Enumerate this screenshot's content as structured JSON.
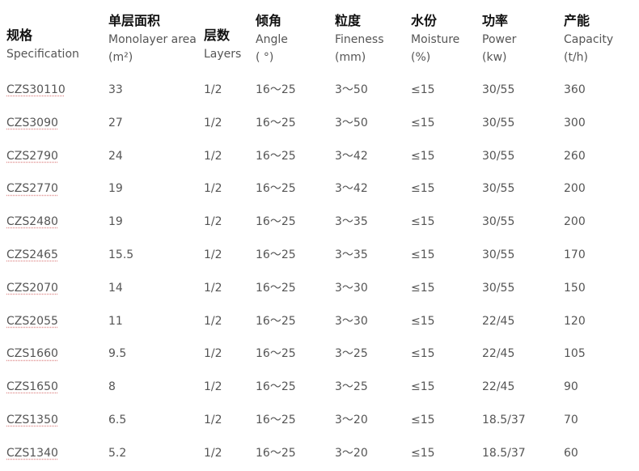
{
  "headers": [
    {
      "zh": "规格",
      "en": "Specification",
      "unit": ""
    },
    {
      "zh": "单层面积",
      "en": "Monolayer area",
      "unit": "(m²)"
    },
    {
      "zh": "层数",
      "en": "Layers",
      "unit": ""
    },
    {
      "zh": "倾角",
      "en": "Angle",
      "unit": "( °)"
    },
    {
      "zh": "粒度",
      "en": "Fineness",
      "unit": "(mm)"
    },
    {
      "zh": "水份",
      "en": "Moisture",
      "unit": "(%)"
    },
    {
      "zh": "功率",
      "en": "Power",
      "unit": "(kw)"
    },
    {
      "zh": "产能",
      "en": "Capacity",
      "unit": "(t/h)"
    }
  ],
  "rows": [
    [
      "CZS30110",
      "33",
      "1/2",
      "16～25",
      "3～50",
      "≤15",
      "30/55",
      "360"
    ],
    [
      "CZS3090",
      "27",
      "1/2",
      "16～25",
      "3～50",
      "≤15",
      "30/55",
      "300"
    ],
    [
      "CZS2790",
      "24",
      "1/2",
      "16～25",
      "3～42",
      "≤15",
      "30/55",
      "260"
    ],
    [
      "CZS2770",
      "19",
      "1/2",
      "16～25",
      "3～42",
      "≤15",
      "30/55",
      "200"
    ],
    [
      "CZS2480",
      "19",
      "1/2",
      "16～25",
      "3～35",
      "≤15",
      "30/55",
      "200"
    ],
    [
      "CZS2465",
      "15.5",
      "1/2",
      "16～25",
      "3～35",
      "≤15",
      "30/55",
      "170"
    ],
    [
      "CZS2070",
      "14",
      "1/2",
      "16～25",
      "3～30",
      "≤15",
      "30/55",
      "150"
    ],
    [
      "CZS2055",
      "11",
      "1/2",
      "16～25",
      "3～30",
      "≤15",
      "22/45",
      "120"
    ],
    [
      "CZS1660",
      "9.5",
      "1/2",
      "16～25",
      "3～25",
      "≤15",
      "22/45",
      "105"
    ],
    [
      "CZS1650",
      "8",
      "1/2",
      "16～25",
      "3～25",
      "≤15",
      "22/45",
      "90"
    ],
    [
      "CZS1350",
      "6.5",
      "1/2",
      "16～25",
      "3～20",
      "≤15",
      "18.5/37",
      "70"
    ],
    [
      "CZS1340",
      "5.2",
      "1/2",
      "16～25",
      "3～20",
      "≤15",
      "18.5/37",
      "60"
    ]
  ]
}
